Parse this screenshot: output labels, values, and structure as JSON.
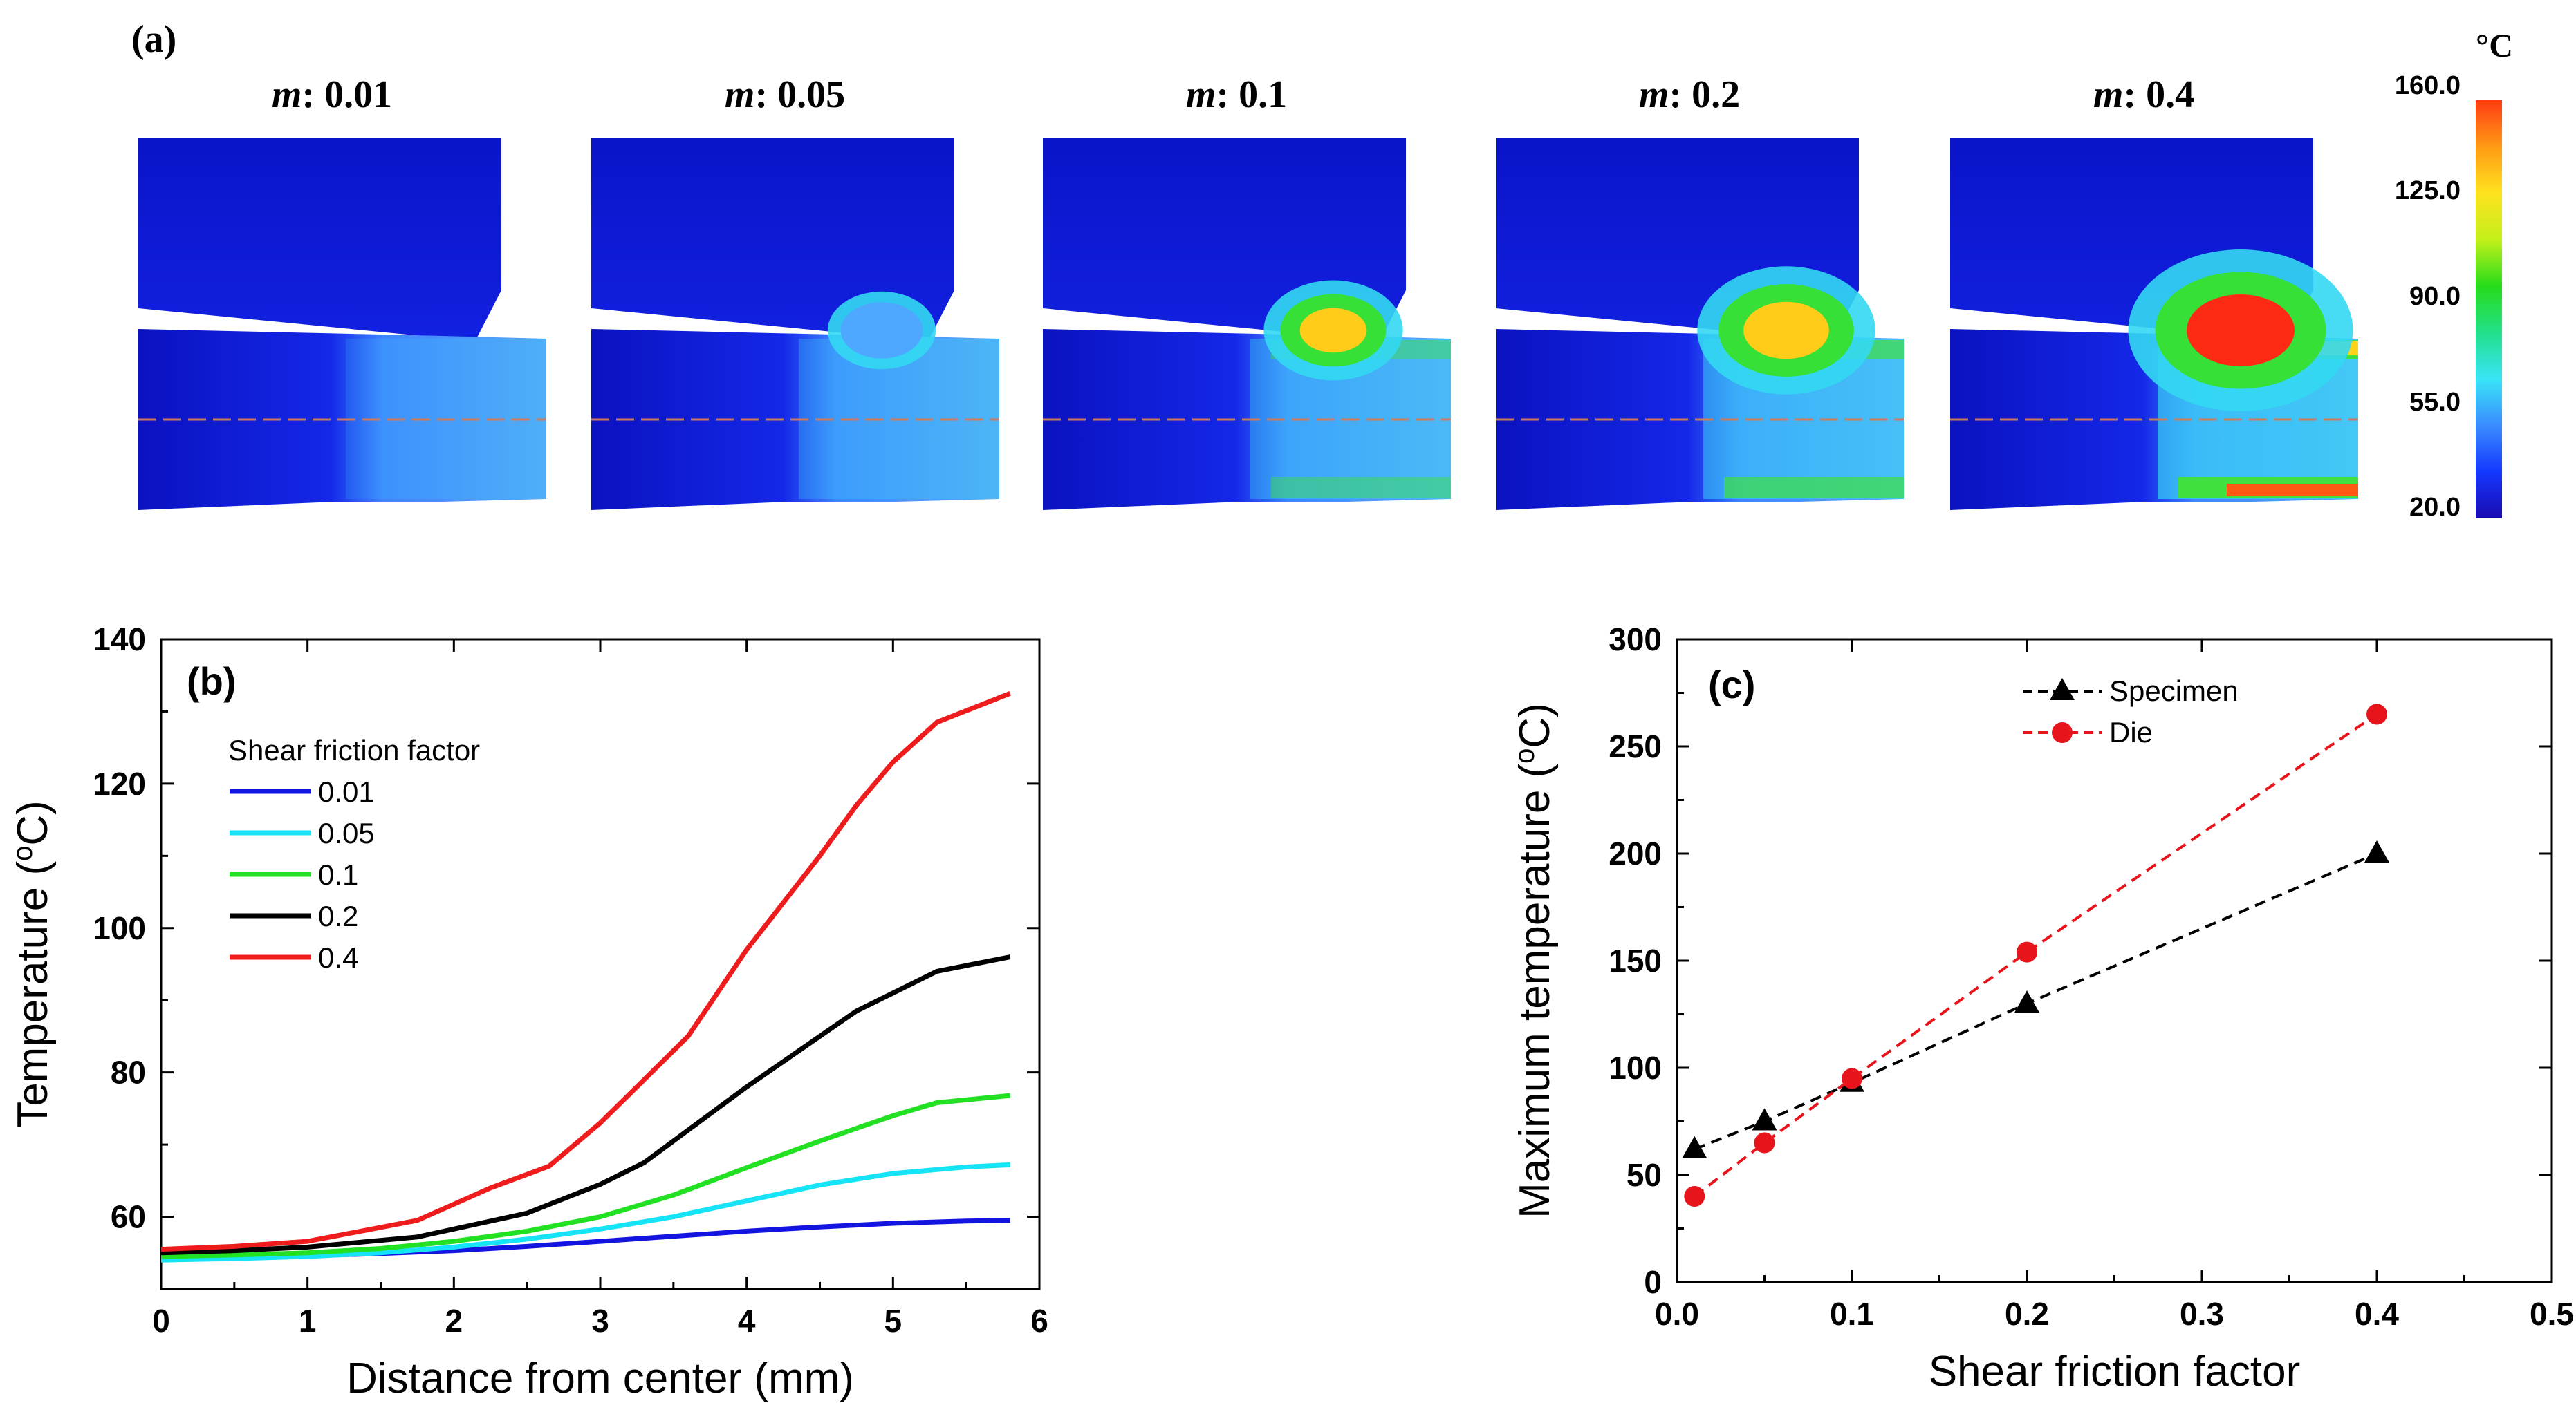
{
  "panel_a": {
    "label": "(a)",
    "unit": "°C",
    "m_prefix": "m",
    "cases": [
      "0.01",
      "0.05",
      "0.1",
      "0.2",
      "0.4"
    ],
    "hot_spot_strength": [
      0.0,
      0.25,
      0.45,
      0.7,
      1.0
    ],
    "colorbar_ticks": [
      "160.0",
      "125.0",
      "90.0",
      "55.0",
      "20.0"
    ],
    "colorbar_colors": [
      "#1a0ab0",
      "#1438ff",
      "#3a8cff",
      "#39e4f7",
      "#22e08a",
      "#27dc1a",
      "#c4f01a",
      "#ffe21f",
      "#ff9a14",
      "#ff3b14"
    ]
  },
  "chart_data": [
    {
      "type": "line",
      "panel_label": "(b)",
      "xlabel": "Distance from center (mm)",
      "ylabel": "Temperature (",
      "ylabel_unit": "C)",
      "ylabel_super": "o",
      "xlim": [
        0,
        6
      ],
      "ylim": [
        50,
        140
      ],
      "xticks": [
        "0",
        "1",
        "2",
        "3",
        "4",
        "5",
        "6"
      ],
      "yticks": [
        "60",
        "80",
        "100",
        "120",
        "140"
      ],
      "legend_title": "Shear friction factor",
      "legend_position": "top-left",
      "series": [
        {
          "name": "0.01",
          "color": "#1414e0",
          "x": [
            0,
            0.5,
            1,
            1.5,
            2,
            2.5,
            3,
            3.5,
            4,
            4.5,
            5,
            5.5,
            5.8
          ],
          "values": [
            54.5,
            54.5,
            54.6,
            54.9,
            55.3,
            55.9,
            56.6,
            57.3,
            58.0,
            58.6,
            59.1,
            59.4,
            59.5
          ]
        },
        {
          "name": "0.05",
          "color": "#16e4f6",
          "x": [
            0,
            0.5,
            1,
            1.5,
            2,
            2.5,
            3,
            3.5,
            4,
            4.5,
            5,
            5.5,
            5.8
          ],
          "values": [
            54.0,
            54.2,
            54.5,
            55.0,
            55.8,
            56.9,
            58.3,
            60.0,
            62.2,
            64.4,
            66.0,
            66.9,
            67.2
          ]
        },
        {
          "name": "0.1",
          "color": "#22e022",
          "x": [
            0,
            0.5,
            1,
            1.5,
            2,
            2.5,
            3,
            3.5,
            4,
            4.5,
            5,
            5.3,
            5.8
          ],
          "values": [
            54.5,
            54.7,
            55.0,
            55.6,
            56.6,
            58.0,
            60.0,
            63.0,
            66.8,
            70.5,
            74.0,
            75.8,
            76.8
          ]
        },
        {
          "name": "0.2",
          "color": "#000000",
          "x": [
            0,
            0.5,
            1,
            1.75,
            2.5,
            3,
            3.3,
            3.6,
            4,
            4.5,
            4.75,
            5,
            5.3,
            5.8
          ],
          "values": [
            55.0,
            55.3,
            55.8,
            57.2,
            60.5,
            64.5,
            67.5,
            72.0,
            78.0,
            85.0,
            88.5,
            91.0,
            94.0,
            96.0
          ]
        },
        {
          "name": "0.4",
          "color": "#ee1c1c",
          "x": [
            0,
            0.5,
            1,
            1.75,
            2.25,
            2.65,
            3,
            3.3,
            3.6,
            4,
            4.5,
            4.75,
            5,
            5.3,
            5.8
          ],
          "values": [
            55.5,
            55.9,
            56.6,
            59.5,
            64.0,
            67.0,
            73.0,
            79.0,
            85.0,
            97.0,
            110.0,
            117.0,
            123.0,
            128.5,
            132.5
          ]
        }
      ]
    },
    {
      "type": "scatter",
      "panel_label": "(c)",
      "xlabel": "Shear friction factor",
      "ylabel": "Maximum temperature (",
      "ylabel_unit": "C)",
      "ylabel_super": "o",
      "xlim": [
        0,
        0.5
      ],
      "ylim": [
        0,
        300
      ],
      "xticks": [
        "0.0",
        "0.1",
        "0.2",
        "0.3",
        "0.4",
        "0.5"
      ],
      "yticks": [
        "0",
        "50",
        "100",
        "150",
        "200",
        "250",
        "300"
      ],
      "legend_position": "top-center",
      "series": [
        {
          "name": "Specimen",
          "color": "#000000",
          "marker": "triangle",
          "x": [
            0.01,
            0.05,
            0.1,
            0.2,
            0.4
          ],
          "values": [
            62,
            75,
            93,
            130,
            200
          ]
        },
        {
          "name": "Die",
          "color": "#e8141c",
          "marker": "circle",
          "x": [
            0.01,
            0.05,
            0.1,
            0.2,
            0.4
          ],
          "values": [
            40,
            65,
            95,
            154,
            265
          ]
        }
      ]
    }
  ]
}
